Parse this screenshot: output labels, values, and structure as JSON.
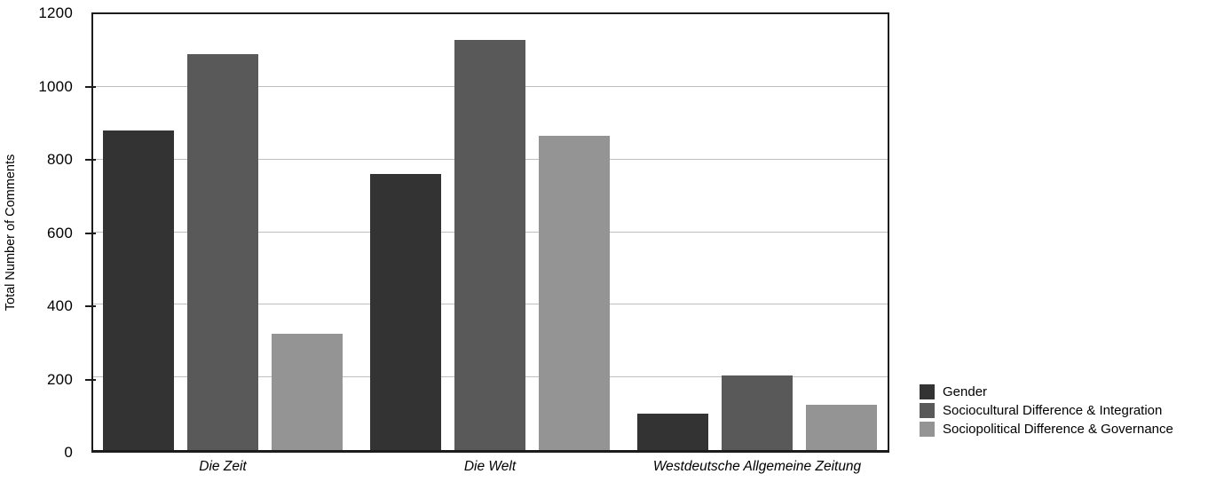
{
  "chart_data": {
    "type": "bar",
    "title": "",
    "xlabel": "",
    "ylabel": "Total Number of Comments",
    "categories": [
      "Die Zeit",
      "Die Welt",
      "Westdeutsche Allgemeine Zeitung"
    ],
    "series": [
      {
        "name": "Gender",
        "color": "#333333",
        "values": [
          880,
          760,
          100
        ]
      },
      {
        "name": "Sociocultural Difference & Integration",
        "color": "#595959",
        "values": [
          1090,
          1130,
          205
        ]
      },
      {
        "name": "Sociopolitical Difference & Governance",
        "color": "#949494",
        "values": [
          320,
          865,
          125
        ]
      }
    ],
    "ylim": [
      0,
      1200
    ],
    "yticks": [
      0,
      200,
      400,
      600,
      800,
      1000,
      1200
    ],
    "grid": true,
    "legend_position": "right",
    "axis_color": "#1c1c1c",
    "gridline_color": "#bfbfbf"
  }
}
